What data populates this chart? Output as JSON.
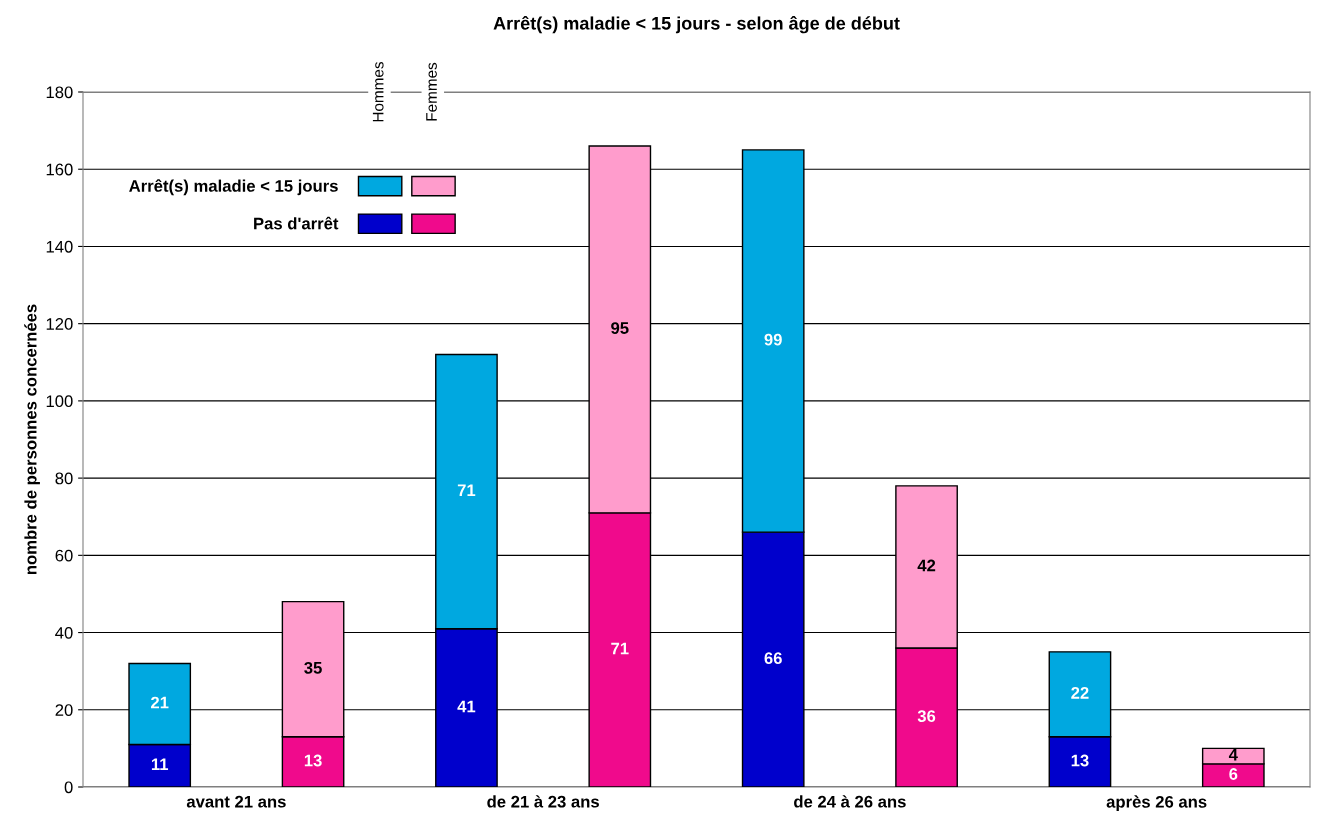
{
  "chart_data": {
    "type": "bar",
    "title": "Arrêt(s) maladie < 15 jours - selon âge de début",
    "ylabel": "nombre de personnes concernées",
    "categories": [
      null,
      null,
      null,
      null,
      null,
      null,
      null,
      null
    ],
    "stacked": true,
    "ylim": [
      0,
      180
    ],
    "yticks": [
      0,
      20,
      40,
      60,
      80,
      100,
      120,
      140,
      160,
      180
    ],
    "grid": "y",
    "legend": "top left",
    "data_labels": true,
    "annotations": [
      "Hommes",
      "Femmes",
      "avant 21 ans",
      "de 21 à 23 ans",
      "de 24 à 26 ans",
      "après 26 ans"
    ],
    "series": [
      {
        "name": "Pas d'arrêt",
        "colors": [
          "#0000cc",
          "#f00a8c",
          "#0000cc",
          "#f00a8c",
          "#0000cc",
          "#f00a8c",
          "#0000cc",
          "#f00a8c"
        ],
        "values": [
          11,
          13,
          41,
          71,
          66,
          36,
          13,
          6
        ]
      },
      {
        "name": "Arrêt(s) maladie < 15 jours",
        "colors": [
          "#00a8e0",
          "#ff9ccc",
          "#00a8e0",
          "#ff9ccc",
          "#00a8e0",
          "#ff9ccc",
          "#00a8e0",
          "#ff9ccc"
        ],
        "values": [
          21,
          35,
          71,
          95,
          99,
          42,
          22,
          4
        ]
      }
    ]
  }
}
